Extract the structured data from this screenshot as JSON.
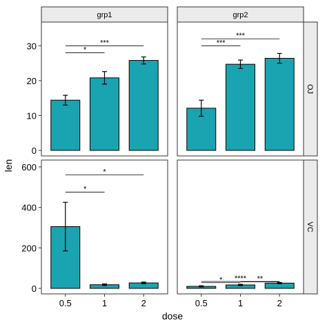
{
  "chart_data": {
    "type": "bar",
    "categories": [
      "0.5",
      "1",
      "2"
    ],
    "xlabel": "dose",
    "ylabel": "len",
    "bar_color": "#1aa3b0",
    "facet_cols": [
      "grp1",
      "grp2"
    ],
    "facet_rows": [
      "OJ",
      "VC"
    ],
    "panels": [
      {
        "col": "grp1",
        "row": "OJ",
        "ylim": [
          0,
          36
        ],
        "yticks": [
          "0",
          "10",
          "20",
          "30"
        ],
        "values": [
          14.4,
          20.8,
          25.8
        ],
        "errors": [
          [
            13.0,
            15.8
          ],
          [
            19.0,
            22.6
          ],
          [
            24.8,
            26.8
          ]
        ],
        "brackets": [
          {
            "from": "0.5",
            "to": "1",
            "y": 28,
            "label": "*"
          },
          {
            "from": "0.5",
            "to": "2",
            "y": 30,
            "label": "***"
          }
        ]
      },
      {
        "col": "grp2",
        "row": "OJ",
        "ylim": [
          0,
          36
        ],
        "yticks": [
          "0",
          "10",
          "20",
          "30"
        ],
        "values": [
          12.1,
          24.7,
          26.4
        ],
        "errors": [
          [
            9.8,
            14.4
          ],
          [
            23.5,
            25.9
          ],
          [
            25.0,
            27.8
          ]
        ],
        "brackets": [
          {
            "from": "0.5",
            "to": "1",
            "y": 30,
            "label": "***"
          },
          {
            "from": "0.5",
            "to": "2",
            "y": 32,
            "label": "***"
          }
        ]
      },
      {
        "col": "grp1",
        "row": "VC",
        "ylim": [
          0,
          620
        ],
        "yticks": [
          "0",
          "200",
          "400",
          "600"
        ],
        "values": [
          305,
          18,
          27
        ],
        "errors": [
          [
            185,
            425
          ],
          [
            14,
            22
          ],
          [
            23,
            31
          ]
        ],
        "brackets": [
          {
            "from": "0.5",
            "to": "1",
            "y": 475,
            "label": "*"
          },
          {
            "from": "0.5",
            "to": "2",
            "y": 560,
            "label": "*"
          }
        ]
      },
      {
        "col": "grp2",
        "row": "VC",
        "ylim": [
          0,
          620
        ],
        "yticks": [
          "0",
          "200",
          "400",
          "600"
        ],
        "values": [
          10,
          17,
          26
        ],
        "errors": [
          [
            7,
            13
          ],
          [
            14,
            20
          ],
          [
            23,
            29
          ]
        ],
        "brackets": [
          {
            "from": "0.5",
            "to": "1",
            "y": 28,
            "label": "*"
          },
          {
            "from": "0.5",
            "to": "2",
            "y": 34,
            "label": "****"
          },
          {
            "from": "1",
            "to": "2",
            "y": 32,
            "label": "**"
          }
        ]
      }
    ]
  }
}
